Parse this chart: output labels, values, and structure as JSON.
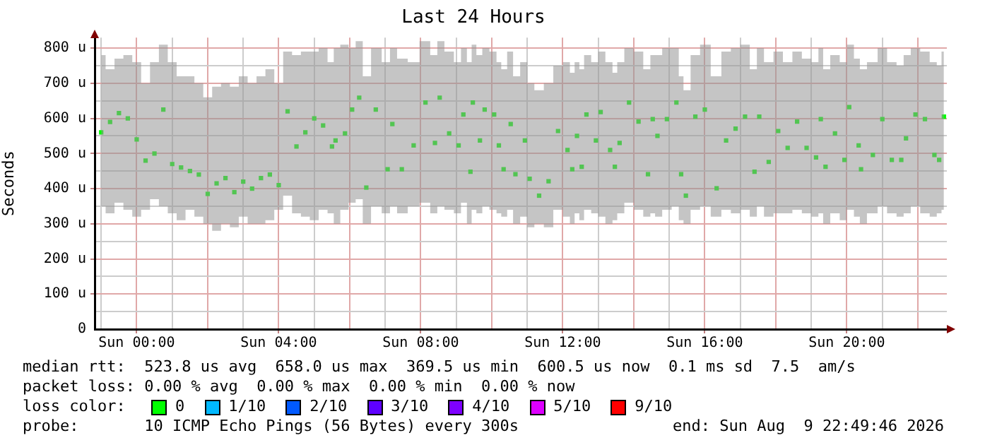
{
  "chart_data": {
    "type": "scatter",
    "title": "Last 24 Hours",
    "ylabel": "Seconds",
    "xlim": [
      "2026-08-08T22:49",
      "2026-08-09T22:49"
    ],
    "ylim": [
      0,
      830
    ],
    "xticks": [
      {
        "value": "2026-08-08T23:00",
        "label": null
      },
      {
        "value": "2026-08-09T00:00",
        "label": "Sun 00:00"
      },
      {
        "value": "2026-08-09T01:00",
        "label": null
      },
      {
        "value": "2026-08-09T02:00",
        "label": null
      },
      {
        "value": "2026-08-09T03:00",
        "label": null
      },
      {
        "value": "2026-08-09T04:00",
        "label": "Sun 04:00"
      },
      {
        "value": "2026-08-09T05:00",
        "label": null
      },
      {
        "value": "2026-08-09T06:00",
        "label": null
      },
      {
        "value": "2026-08-09T07:00",
        "label": null
      },
      {
        "value": "2026-08-09T08:00",
        "label": "Sun 08:00"
      },
      {
        "value": "2026-08-09T09:00",
        "label": null
      },
      {
        "value": "2026-08-09T10:00",
        "label": null
      },
      {
        "value": "2026-08-09T11:00",
        "label": null
      },
      {
        "value": "2026-08-09T12:00",
        "label": "Sun 12:00"
      },
      {
        "value": "2026-08-09T13:00",
        "label": null
      },
      {
        "value": "2026-08-09T14:00",
        "label": null
      },
      {
        "value": "2026-08-09T15:00",
        "label": null
      },
      {
        "value": "2026-08-09T16:00",
        "label": "Sun 16:00"
      },
      {
        "value": "2026-08-09T17:00",
        "label": null
      },
      {
        "value": "2026-08-09T18:00",
        "label": null
      },
      {
        "value": "2026-08-09T19:00",
        "label": null
      },
      {
        "value": "2026-08-09T20:00",
        "label": "Sun 20:00"
      },
      {
        "value": "2026-08-09T21:00",
        "label": null
      },
      {
        "value": "2026-08-09T22:00",
        "label": null
      }
    ],
    "yticks": [
      0,
      {
        "value": 50,
        "label": null
      },
      {
        "value": 100,
        "label": "100 u"
      },
      {
        "value": 150,
        "label": null
      },
      {
        "value": 200,
        "label": "200 u"
      },
      {
        "value": 250,
        "label": null
      },
      {
        "value": 300,
        "label": "300 u"
      },
      {
        "value": 350,
        "label": null
      },
      {
        "value": 400,
        "label": "400 u"
      },
      {
        "value": 450,
        "label": null
      },
      {
        "value": 500,
        "label": "500 u"
      },
      {
        "value": 550,
        "label": null
      },
      {
        "value": 600,
        "label": "600 u"
      },
      {
        "value": 650,
        "label": null
      },
      {
        "value": 700,
        "label": "700 u"
      },
      {
        "value": 750,
        "label": null
      },
      {
        "value": 800,
        "label": "800 u"
      }
    ],
    "grid": true,
    "legend": false,
    "marker": "square",
    "series": [
      {
        "color": "#00ff00",
        "x": [
          "2026-08-08T23:00",
          "2026-08-08T23:15",
          "2026-08-08T23:30",
          "2026-08-08T23:45",
          "2026-08-09T00:00",
          "2026-08-09T00:15",
          "2026-08-09T00:30",
          "2026-08-09T00:45",
          "2026-08-09T01:00",
          "2026-08-09T01:15",
          "2026-08-09T01:30",
          "2026-08-09T01:45",
          "2026-08-09T02:00",
          "2026-08-09T02:15",
          "2026-08-09T02:30",
          "2026-08-09T02:45",
          "2026-08-09T03:00",
          "2026-08-09T03:15",
          "2026-08-09T03:30",
          "2026-08-09T03:45",
          "2026-08-09T04:00",
          "2026-08-09T04:15",
          "2026-08-09T04:30",
          "2026-08-09T04:45",
          "2026-08-09T05:00",
          "2026-08-09T05:15",
          "2026-08-09T05:30",
          "2026-08-09T05:36",
          "2026-08-09T05:52",
          "2026-08-09T06:04",
          "2026-08-09T06:16",
          "2026-08-09T06:28",
          "2026-08-09T06:44",
          "2026-08-09T07:04",
          "2026-08-09T07:12",
          "2026-08-09T07:28",
          "2026-08-09T07:48",
          "2026-08-09T08:08",
          "2026-08-09T08:24",
          "2026-08-09T08:32",
          "2026-08-09T08:48",
          "2026-08-09T09:04",
          "2026-08-09T09:12",
          "2026-08-09T09:24",
          "2026-08-09T09:28",
          "2026-08-09T09:40",
          "2026-08-09T09:48",
          "2026-08-09T10:04",
          "2026-08-09T10:12",
          "2026-08-09T10:20",
          "2026-08-09T10:32",
          "2026-08-09T10:40",
          "2026-08-09T10:56",
          "2026-08-09T11:04",
          "2026-08-09T11:20",
          "2026-08-09T11:36",
          "2026-08-09T11:52",
          "2026-08-09T12:08",
          "2026-08-09T12:16",
          "2026-08-09T12:24",
          "2026-08-09T12:32",
          "2026-08-09T12:40",
          "2026-08-09T12:56",
          "2026-08-09T13:04",
          "2026-08-09T13:20",
          "2026-08-09T13:28",
          "2026-08-09T13:36",
          "2026-08-09T13:52",
          "2026-08-09T14:08",
          "2026-08-09T14:24",
          "2026-08-09T14:32",
          "2026-08-09T14:40",
          "2026-08-09T14:56",
          "2026-08-09T15:12",
          "2026-08-09T15:20",
          "2026-08-09T15:28",
          "2026-08-09T15:44",
          "2026-08-09T16:00",
          "2026-08-09T16:20",
          "2026-08-09T16:36",
          "2026-08-09T16:52",
          "2026-08-09T17:08",
          "2026-08-09T17:24",
          "2026-08-09T17:32",
          "2026-08-09T17:48",
          "2026-08-09T18:04",
          "2026-08-09T18:20",
          "2026-08-09T18:36",
          "2026-08-09T18:52",
          "2026-08-09T19:08",
          "2026-08-09T19:16",
          "2026-08-09T19:24",
          "2026-08-09T19:40",
          "2026-08-09T19:56",
          "2026-08-09T20:04",
          "2026-08-09T20:20",
          "2026-08-09T20:24",
          "2026-08-09T20:44",
          "2026-08-09T21:00",
          "2026-08-09T21:16",
          "2026-08-09T21:32",
          "2026-08-09T21:40",
          "2026-08-09T21:56",
          "2026-08-09T22:12",
          "2026-08-09T22:28",
          "2026-08-09T22:36",
          "2026-08-09T22:44"
        ],
        "values": [
          560,
          590,
          615,
          600,
          540,
          480,
          500,
          625,
          470,
          460,
          450,
          440,
          385,
          415,
          430,
          390,
          420,
          400,
          430,
          440,
          410,
          620,
          520,
          560,
          600,
          580,
          520,
          537,
          557,
          625,
          659,
          403,
          625,
          455,
          584,
          455,
          523,
          645,
          530,
          659,
          557,
          523,
          611,
          448,
          645,
          537,
          625,
          611,
          523,
          455,
          584,
          441,
          537,
          428,
          380,
          421,
          564,
          510,
          455,
          550,
          462,
          611,
          537,
          618,
          510,
          462,
          530,
          645,
          591,
          441,
          598,
          550,
          598,
          645,
          441,
          380,
          605,
          625,
          401,
          537,
          571,
          605,
          448,
          605,
          476,
          564,
          516,
          591,
          516,
          489,
          598,
          462,
          557,
          482,
          632,
          523,
          455,
          496,
          598,
          482,
          482,
          543,
          611,
          598,
          496,
          482,
          605
        ],
        "lower": [
          350,
          330,
          360,
          340,
          320,
          340,
          370,
          350,
          330,
          310,
          340,
          320,
          300,
          280,
          300,
          290,
          320,
          300,
          300,
          310,
          340,
          380,
          330,
          320,
          310,
          340,
          330,
          300,
          340,
          360,
          370,
          300,
          350,
          330,
          350,
          330,
          350,
          360,
          330,
          350,
          340,
          330,
          360,
          300,
          340,
          330,
          350,
          340,
          330,
          320,
          340,
          300,
          320,
          290,
          300,
          290,
          340,
          320,
          300,
          330,
          310,
          340,
          330,
          320,
          300,
          310,
          330,
          360,
          340,
          320,
          330,
          320,
          340,
          350,
          310,
          300,
          340,
          350,
          320,
          340,
          330,
          340,
          320,
          350,
          320,
          330,
          330,
          340,
          330,
          320,
          330,
          300,
          330,
          310,
          340,
          320,
          300,
          330,
          350,
          330,
          320,
          330,
          350,
          330,
          320,
          330,
          340
        ],
        "upper": [
          780,
          740,
          770,
          780,
          760,
          700,
          760,
          810,
          760,
          720,
          720,
          700,
          660,
          690,
          700,
          690,
          720,
          700,
          720,
          740,
          700,
          790,
          780,
          790,
          790,
          800,
          760,
          800,
          810,
          800,
          820,
          720,
          800,
          760,
          800,
          770,
          760,
          820,
          780,
          820,
          790,
          760,
          800,
          760,
          810,
          780,
          800,
          790,
          760,
          740,
          790,
          720,
          760,
          700,
          680,
          700,
          750,
          760,
          730,
          760,
          740,
          780,
          760,
          790,
          760,
          730,
          760,
          800,
          790,
          740,
          780,
          780,
          800,
          800,
          720,
          680,
          780,
          810,
          720,
          790,
          800,
          810,
          740,
          800,
          760,
          790,
          760,
          790,
          770,
          760,
          800,
          740,
          780,
          760,
          810,
          770,
          740,
          760,
          800,
          760,
          750,
          780,
          800,
          790,
          760,
          750,
          790
        ]
      }
    ],
    "annotations": [
      "median rtt:  523.8 us avg  658.0 us max  369.5 us min  600.5 us now  0.1 ms sd  7.5  am/s",
      "packet loss: 0.00 % avg  0.00 % max  0.00 % min  0.00 % now",
      "loss color:",
      "0",
      "1/10",
      "2/10",
      "3/10",
      "4/10",
      "5/10",
      "9/10",
      "probe:       10 ICMP Echo Pings (56 Bytes) every 300s",
      "end: Sun Aug  9 22:49:46 2026"
    ]
  }
}
